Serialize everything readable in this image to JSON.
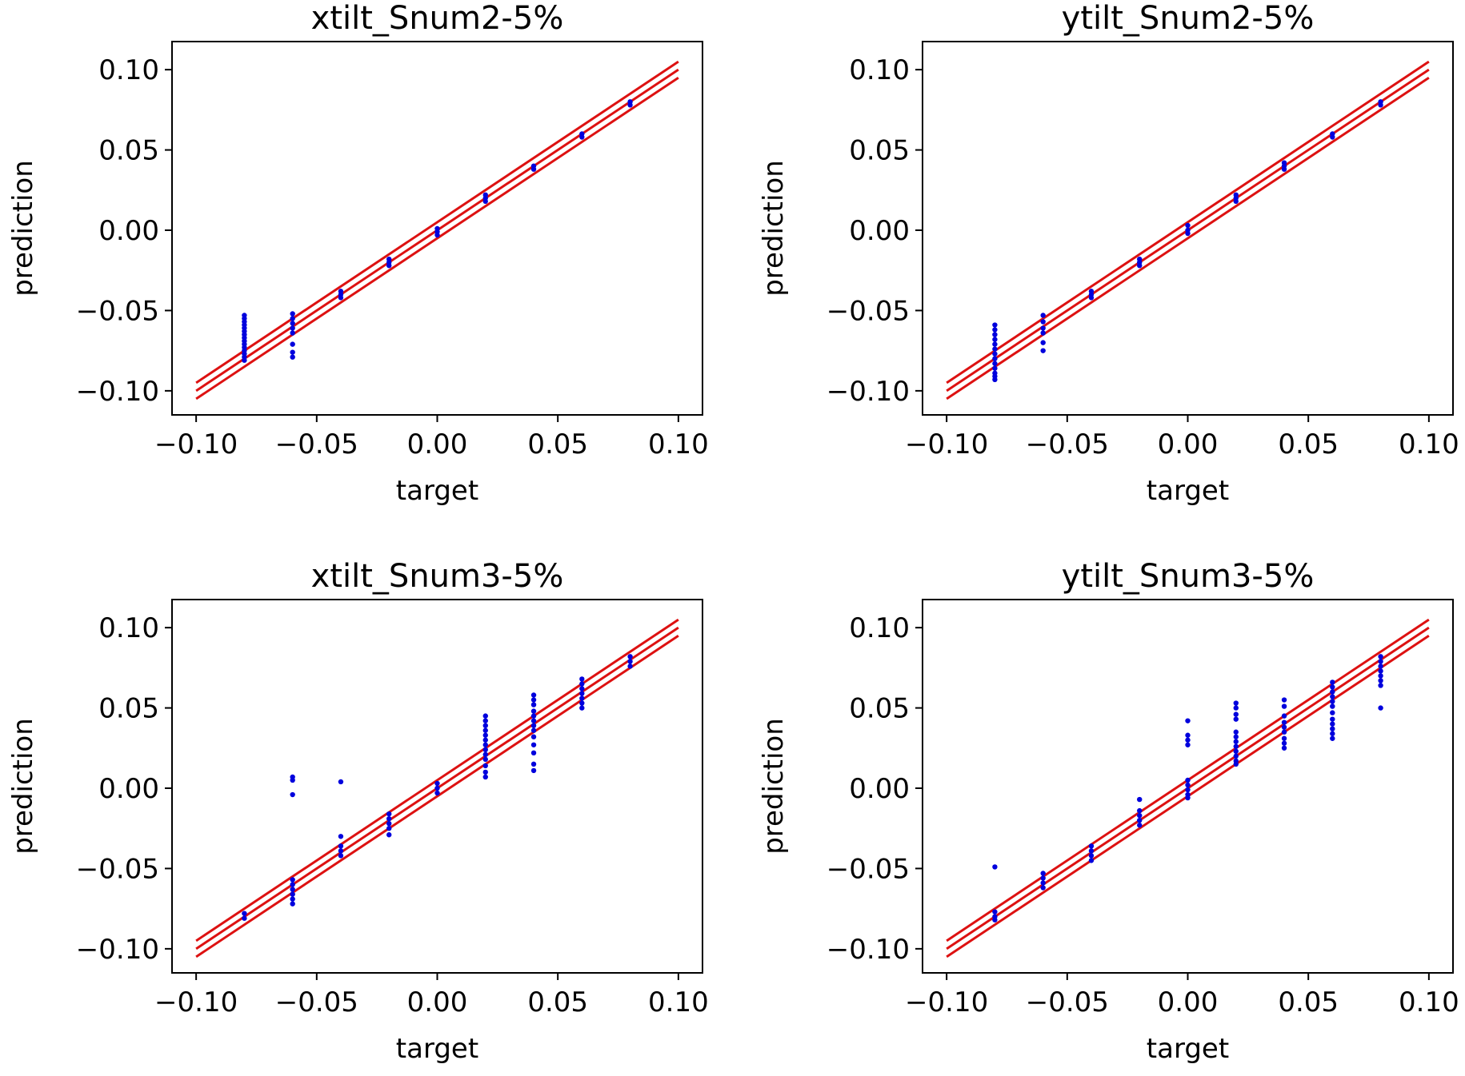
{
  "figure": {
    "background": "#ffffff"
  },
  "style": {
    "point_color": "#0000dd",
    "line_color": "#dd1111",
    "axis_color": "#000000"
  },
  "chart_data": [
    {
      "type": "scatter",
      "title": "xtilt_Snum2-5%",
      "xlabel": "target",
      "ylabel": "prediction",
      "xlim": [
        -0.11,
        0.11
      ],
      "ylim": [
        -0.115,
        0.1175
      ],
      "xticks": [
        -0.1,
        -0.05,
        0.0,
        0.05,
        0.1
      ],
      "yticks": [
        -0.1,
        -0.05,
        0.0,
        0.05,
        0.1
      ],
      "xtick_labels": [
        "−0.10",
        "−0.05",
        "0.00",
        "0.05",
        "0.10"
      ],
      "ytick_labels": [
        "−0.10",
        "−0.05",
        "0.00",
        "0.05",
        "0.10"
      ],
      "reference_lines": [
        {
          "name": "upper",
          "x": [
            -0.1,
            0.1
          ],
          "y": [
            -0.095,
            0.105
          ]
        },
        {
          "name": "identity",
          "x": [
            -0.1,
            0.1
          ],
          "y": [
            -0.1,
            0.1
          ]
        },
        {
          "name": "lower",
          "x": [
            -0.1,
            0.1
          ],
          "y": [
            -0.105,
            0.095
          ]
        }
      ],
      "points": [
        [
          -0.08,
          -0.053
        ],
        [
          -0.08,
          -0.055
        ],
        [
          -0.08,
          -0.057
        ],
        [
          -0.08,
          -0.059
        ],
        [
          -0.08,
          -0.061
        ],
        [
          -0.08,
          -0.063
        ],
        [
          -0.08,
          -0.065
        ],
        [
          -0.08,
          -0.067
        ],
        [
          -0.08,
          -0.069
        ],
        [
          -0.08,
          -0.071
        ],
        [
          -0.08,
          -0.073
        ],
        [
          -0.08,
          -0.075
        ],
        [
          -0.08,
          -0.077
        ],
        [
          -0.08,
          -0.079
        ],
        [
          -0.08,
          -0.081
        ],
        [
          -0.06,
          -0.052
        ],
        [
          -0.06,
          -0.055
        ],
        [
          -0.06,
          -0.058
        ],
        [
          -0.06,
          -0.061
        ],
        [
          -0.06,
          -0.064
        ],
        [
          -0.06,
          -0.071
        ],
        [
          -0.06,
          -0.076
        ],
        [
          -0.06,
          -0.079
        ],
        [
          -0.04,
          -0.038
        ],
        [
          -0.04,
          -0.04
        ],
        [
          -0.04,
          -0.042
        ],
        [
          -0.02,
          -0.018
        ],
        [
          -0.02,
          -0.02
        ],
        [
          -0.02,
          -0.022
        ],
        [
          0.0,
          0.001
        ],
        [
          0.0,
          -0.001
        ],
        [
          0.0,
          -0.003
        ],
        [
          0.02,
          0.018
        ],
        [
          0.02,
          0.02
        ],
        [
          0.02,
          0.022
        ],
        [
          0.04,
          0.038
        ],
        [
          0.04,
          0.04
        ],
        [
          0.06,
          0.058
        ],
        [
          0.06,
          0.06
        ],
        [
          0.08,
          0.078
        ],
        [
          0.08,
          0.08
        ]
      ]
    },
    {
      "type": "scatter",
      "title": "ytilt_Snum2-5%",
      "xlabel": "target",
      "ylabel": "prediction",
      "xlim": [
        -0.11,
        0.11
      ],
      "ylim": [
        -0.115,
        0.1175
      ],
      "xticks": [
        -0.1,
        -0.05,
        0.0,
        0.05,
        0.1
      ],
      "yticks": [
        -0.1,
        -0.05,
        0.0,
        0.05,
        0.1
      ],
      "xtick_labels": [
        "−0.10",
        "−0.05",
        "0.00",
        "0.05",
        "0.10"
      ],
      "ytick_labels": [
        "−0.10",
        "−0.05",
        "0.00",
        "0.05",
        "0.10"
      ],
      "reference_lines": [
        {
          "name": "upper",
          "x": [
            -0.1,
            0.1
          ],
          "y": [
            -0.095,
            0.105
          ]
        },
        {
          "name": "identity",
          "x": [
            -0.1,
            0.1
          ],
          "y": [
            -0.1,
            0.1
          ]
        },
        {
          "name": "lower",
          "x": [
            -0.1,
            0.1
          ],
          "y": [
            -0.105,
            0.095
          ]
        }
      ],
      "points": [
        [
          -0.08,
          -0.059
        ],
        [
          -0.08,
          -0.062
        ],
        [
          -0.08,
          -0.065
        ],
        [
          -0.08,
          -0.068
        ],
        [
          -0.08,
          -0.071
        ],
        [
          -0.08,
          -0.074
        ],
        [
          -0.08,
          -0.077
        ],
        [
          -0.08,
          -0.08
        ],
        [
          -0.08,
          -0.083
        ],
        [
          -0.08,
          -0.086
        ],
        [
          -0.08,
          -0.089
        ],
        [
          -0.08,
          -0.091
        ],
        [
          -0.08,
          -0.093
        ],
        [
          -0.06,
          -0.053
        ],
        [
          -0.06,
          -0.057
        ],
        [
          -0.06,
          -0.061
        ],
        [
          -0.06,
          -0.064
        ],
        [
          -0.06,
          -0.07
        ],
        [
          -0.06,
          -0.075
        ],
        [
          -0.04,
          -0.038
        ],
        [
          -0.04,
          -0.04
        ],
        [
          -0.04,
          -0.042
        ],
        [
          -0.02,
          -0.018
        ],
        [
          -0.02,
          -0.02
        ],
        [
          -0.02,
          -0.022
        ],
        [
          0.0,
          0.003
        ],
        [
          0.0,
          0.0
        ],
        [
          0.0,
          -0.002
        ],
        [
          0.02,
          0.018
        ],
        [
          0.02,
          0.02
        ],
        [
          0.02,
          0.022
        ],
        [
          0.04,
          0.038
        ],
        [
          0.04,
          0.04
        ],
        [
          0.04,
          0.042
        ],
        [
          0.06,
          0.058
        ],
        [
          0.06,
          0.06
        ],
        [
          0.08,
          0.078
        ],
        [
          0.08,
          0.08
        ]
      ]
    },
    {
      "type": "scatter",
      "title": "xtilt_Snum3-5%",
      "xlabel": "target",
      "ylabel": "prediction",
      "xlim": [
        -0.11,
        0.11
      ],
      "ylim": [
        -0.115,
        0.1175
      ],
      "xticks": [
        -0.1,
        -0.05,
        0.0,
        0.05,
        0.1
      ],
      "yticks": [
        -0.1,
        -0.05,
        0.0,
        0.05,
        0.1
      ],
      "xtick_labels": [
        "−0.10",
        "−0.05",
        "0.00",
        "0.05",
        "0.10"
      ],
      "ytick_labels": [
        "−0.10",
        "−0.05",
        "0.00",
        "0.05",
        "0.10"
      ],
      "reference_lines": [
        {
          "name": "upper",
          "x": [
            -0.1,
            0.1
          ],
          "y": [
            -0.095,
            0.105
          ]
        },
        {
          "name": "identity",
          "x": [
            -0.1,
            0.1
          ],
          "y": [
            -0.1,
            0.1
          ]
        },
        {
          "name": "lower",
          "x": [
            -0.1,
            0.1
          ],
          "y": [
            -0.105,
            0.095
          ]
        }
      ],
      "points": [
        [
          -0.08,
          -0.078
        ],
        [
          -0.08,
          -0.081
        ],
        [
          -0.06,
          0.007
        ],
        [
          -0.06,
          0.005
        ],
        [
          -0.06,
          -0.004
        ],
        [
          -0.06,
          -0.057
        ],
        [
          -0.06,
          -0.06
        ],
        [
          -0.06,
          -0.063
        ],
        [
          -0.06,
          -0.066
        ],
        [
          -0.06,
          -0.069
        ],
        [
          -0.06,
          -0.072
        ],
        [
          -0.04,
          0.004
        ],
        [
          -0.04,
          -0.03
        ],
        [
          -0.04,
          -0.036
        ],
        [
          -0.04,
          -0.039
        ],
        [
          -0.04,
          -0.042
        ],
        [
          -0.02,
          -0.016
        ],
        [
          -0.02,
          -0.019
        ],
        [
          -0.02,
          -0.022
        ],
        [
          -0.02,
          -0.025
        ],
        [
          -0.02,
          -0.029
        ],
        [
          0.0,
          0.003
        ],
        [
          0.0,
          0.0
        ],
        [
          0.0,
          -0.003
        ],
        [
          0.02,
          0.045
        ],
        [
          0.02,
          0.042
        ],
        [
          0.02,
          0.039
        ],
        [
          0.02,
          0.036
        ],
        [
          0.02,
          0.033
        ],
        [
          0.02,
          0.03
        ],
        [
          0.02,
          0.027
        ],
        [
          0.02,
          0.024
        ],
        [
          0.02,
          0.021
        ],
        [
          0.02,
          0.018
        ],
        [
          0.02,
          0.014
        ],
        [
          0.02,
          0.01
        ],
        [
          0.02,
          0.007
        ],
        [
          0.04,
          0.058
        ],
        [
          0.04,
          0.055
        ],
        [
          0.04,
          0.052
        ],
        [
          0.04,
          0.048
        ],
        [
          0.04,
          0.045
        ],
        [
          0.04,
          0.042
        ],
        [
          0.04,
          0.039
        ],
        [
          0.04,
          0.036
        ],
        [
          0.04,
          0.032
        ],
        [
          0.04,
          0.027
        ],
        [
          0.04,
          0.022
        ],
        [
          0.04,
          0.015
        ],
        [
          0.04,
          0.011
        ],
        [
          0.06,
          0.068
        ],
        [
          0.06,
          0.065
        ],
        [
          0.06,
          0.062
        ],
        [
          0.06,
          0.059
        ],
        [
          0.06,
          0.056
        ],
        [
          0.06,
          0.053
        ],
        [
          0.06,
          0.05
        ],
        [
          0.08,
          0.082
        ],
        [
          0.08,
          0.079
        ],
        [
          0.08,
          0.076
        ]
      ]
    },
    {
      "type": "scatter",
      "title": "ytilt_Snum3-5%",
      "xlabel": "target",
      "ylabel": "prediction",
      "xlim": [
        -0.11,
        0.11
      ],
      "ylim": [
        -0.115,
        0.1175
      ],
      "xticks": [
        -0.1,
        -0.05,
        0.0,
        0.05,
        0.1
      ],
      "yticks": [
        -0.1,
        -0.05,
        0.0,
        0.05,
        0.1
      ],
      "xtick_labels": [
        "−0.10",
        "−0.05",
        "0.00",
        "0.05",
        "0.10"
      ],
      "ytick_labels": [
        "−0.10",
        "−0.05",
        "0.00",
        "0.05",
        "0.10"
      ],
      "reference_lines": [
        {
          "name": "upper",
          "x": [
            -0.1,
            0.1
          ],
          "y": [
            -0.095,
            0.105
          ]
        },
        {
          "name": "identity",
          "x": [
            -0.1,
            0.1
          ],
          "y": [
            -0.1,
            0.1
          ]
        },
        {
          "name": "lower",
          "x": [
            -0.1,
            0.1
          ],
          "y": [
            -0.105,
            0.095
          ]
        }
      ],
      "points": [
        [
          -0.08,
          -0.049
        ],
        [
          -0.08,
          -0.077
        ],
        [
          -0.08,
          -0.08
        ],
        [
          -0.08,
          -0.082
        ],
        [
          -0.06,
          -0.053
        ],
        [
          -0.06,
          -0.056
        ],
        [
          -0.06,
          -0.059
        ],
        [
          -0.06,
          -0.062
        ],
        [
          -0.04,
          -0.036
        ],
        [
          -0.04,
          -0.039
        ],
        [
          -0.04,
          -0.042
        ],
        [
          -0.04,
          -0.045
        ],
        [
          -0.02,
          -0.007
        ],
        [
          -0.02,
          -0.014
        ],
        [
          -0.02,
          -0.017
        ],
        [
          -0.02,
          -0.02
        ],
        [
          -0.02,
          -0.023
        ],
        [
          0.0,
          0.042
        ],
        [
          0.0,
          0.033
        ],
        [
          0.0,
          0.03
        ],
        [
          0.0,
          0.027
        ],
        [
          0.0,
          0.005
        ],
        [
          0.0,
          0.002
        ],
        [
          0.0,
          -0.001
        ],
        [
          0.0,
          -0.004
        ],
        [
          0.0,
          -0.006
        ],
        [
          0.02,
          0.053
        ],
        [
          0.02,
          0.05
        ],
        [
          0.02,
          0.046
        ],
        [
          0.02,
          0.043
        ],
        [
          0.02,
          0.035
        ],
        [
          0.02,
          0.032
        ],
        [
          0.02,
          0.029
        ],
        [
          0.02,
          0.026
        ],
        [
          0.02,
          0.023
        ],
        [
          0.02,
          0.02
        ],
        [
          0.02,
          0.017
        ],
        [
          0.02,
          0.015
        ],
        [
          0.04,
          0.055
        ],
        [
          0.04,
          0.051
        ],
        [
          0.04,
          0.045
        ],
        [
          0.04,
          0.041
        ],
        [
          0.04,
          0.038
        ],
        [
          0.04,
          0.035
        ],
        [
          0.04,
          0.031
        ],
        [
          0.04,
          0.028
        ],
        [
          0.04,
          0.025
        ],
        [
          0.06,
          0.066
        ],
        [
          0.06,
          0.063
        ],
        [
          0.06,
          0.06
        ],
        [
          0.06,
          0.057
        ],
        [
          0.06,
          0.054
        ],
        [
          0.06,
          0.051
        ],
        [
          0.06,
          0.047
        ],
        [
          0.06,
          0.043
        ],
        [
          0.06,
          0.04
        ],
        [
          0.06,
          0.037
        ],
        [
          0.06,
          0.034
        ],
        [
          0.06,
          0.031
        ],
        [
          0.08,
          0.082
        ],
        [
          0.08,
          0.079
        ],
        [
          0.08,
          0.076
        ],
        [
          0.08,
          0.073
        ],
        [
          0.08,
          0.07
        ],
        [
          0.08,
          0.067
        ],
        [
          0.08,
          0.064
        ],
        [
          0.08,
          0.05
        ]
      ]
    }
  ]
}
